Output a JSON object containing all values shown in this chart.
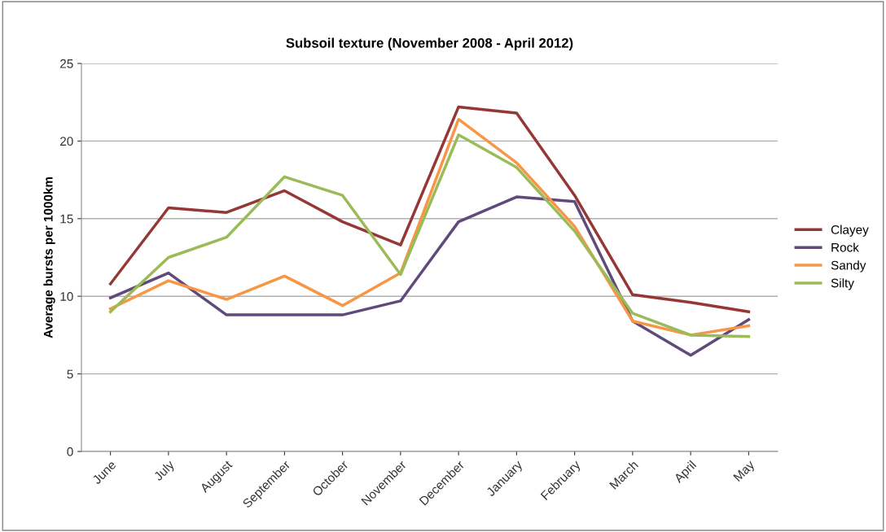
{
  "chart_data": {
    "type": "line",
    "title": "Subsoil texture (November 2008 - April 2012)",
    "ylabel": "Average bursts per 1000km",
    "categories": [
      "June",
      "July",
      "August",
      "September",
      "October",
      "November",
      "December",
      "January",
      "February",
      "March",
      "April",
      "May"
    ],
    "series": [
      {
        "name": "Clayey",
        "color": "#953735",
        "values": [
          10.8,
          15.7,
          15.4,
          16.8,
          14.8,
          13.3,
          22.2,
          21.8,
          16.5,
          10.1,
          9.6,
          9.0
        ]
      },
      {
        "name": "Rock",
        "color": "#604a7b",
        "values": [
          9.9,
          11.5,
          8.8,
          8.8,
          8.8,
          9.7,
          14.8,
          16.4,
          16.1,
          8.4,
          6.2,
          8.5
        ]
      },
      {
        "name": "Sandy",
        "color": "#f79646",
        "values": [
          9.2,
          11.0,
          9.8,
          11.3,
          9.4,
          11.5,
          21.4,
          18.6,
          14.5,
          8.4,
          7.5,
          8.1
        ]
      },
      {
        "name": "Silty",
        "color": "#9bbb59",
        "values": [
          9.0,
          12.5,
          13.8,
          17.7,
          16.5,
          11.4,
          20.4,
          18.3,
          14.2,
          8.9,
          7.5,
          7.4
        ]
      }
    ],
    "ylim": [
      0,
      25
    ],
    "yticks": [
      0,
      5,
      10,
      15,
      20,
      25
    ],
    "grid": "y",
    "legend": "right",
    "marker": "none",
    "line_style": "solid"
  }
}
